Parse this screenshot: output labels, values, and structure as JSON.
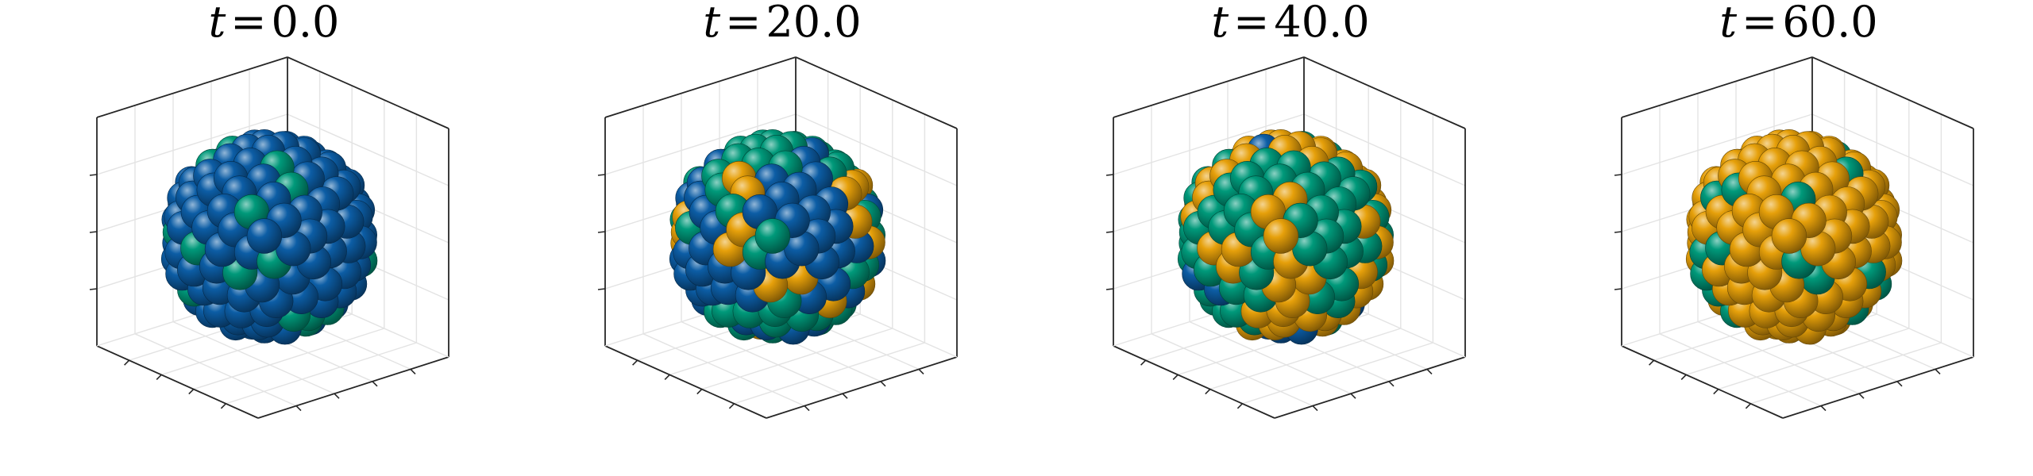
{
  "colors": {
    "blue": "#0c5da5",
    "green": "#00997a",
    "orange": "#e6a00a",
    "background": "#ffffff",
    "axis": "#262626",
    "grid": "#e3e3e3"
  },
  "chart_data": [
    {
      "type": "scatter",
      "kind": "3d-sphere-cluster",
      "title_var": "t",
      "title_eq": "=",
      "time": "0.0",
      "composition": {
        "blue": 0.82,
        "green": 0.18,
        "orange": 0.0
      },
      "grid": true,
      "tick_labels": false
    },
    {
      "type": "scatter",
      "kind": "3d-sphere-cluster",
      "title_var": "t",
      "title_eq": "=",
      "time": "20.0",
      "composition": {
        "blue": 0.34,
        "green": 0.42,
        "orange": 0.24
      },
      "grid": true,
      "tick_labels": false
    },
    {
      "type": "scatter",
      "kind": "3d-sphere-cluster",
      "title_var": "t",
      "title_eq": "=",
      "time": "40.0",
      "composition": {
        "blue": 0.06,
        "green": 0.38,
        "orange": 0.56
      },
      "grid": true,
      "tick_labels": false
    },
    {
      "type": "scatter",
      "kind": "3d-sphere-cluster",
      "title_var": "t",
      "title_eq": "=",
      "time": "60.0",
      "composition": {
        "blue": 0.0,
        "green": 0.12,
        "orange": 0.88
      },
      "grid": true,
      "tick_labels": false
    }
  ]
}
